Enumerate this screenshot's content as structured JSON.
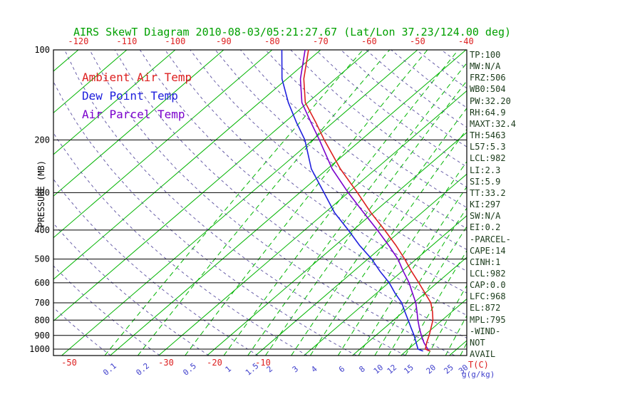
{
  "colors": {
    "grid_green": "#00b400",
    "adiabat_violet": "#5a4fa0",
    "mix_label": "#4040cc",
    "stats_text": "#1a3a1a",
    "title_green": "#00a000",
    "tick_red": "#dd2020",
    "axis_black": "#000000",
    "ambient_red": "#dd2020",
    "dew_blue": "#2020dd",
    "parcel_violet": "#7a00cc"
  },
  "legend": {
    "items": [
      {
        "label": "Ambient Air Temp",
        "color": "#dd2020"
      },
      {
        "label": "Dew Point Temp",
        "color": "#2020dd"
      },
      {
        "label": "Air Parcel Temp",
        "color": "#7a00cc"
      }
    ]
  },
  "stats_panel": {
    "lines": [
      "TP:100",
      "MW:N/A",
      "FRZ:506",
      "WB0:504",
      "PW:32.20",
      "RH:64.9",
      "MAXT:32.4",
      "TH:5463",
      "L57:5.3",
      "LCL:982",
      "LI:2.3",
      "SI:5.9",
      "TT:33.2",
      "KI:297",
      "SW:N/A",
      "EI:0.2",
      "-PARCEL-",
      "CAPE:14",
      "CINH:1",
      "LCL:982",
      "CAP:0.0",
      "LFC:968",
      "EL:872",
      "MPL:795",
      "-WIND-",
      "NOT",
      "AVAIL"
    ]
  },
  "chart_data": {
    "type": "line",
    "variant": "skew-t-log-p",
    "title": "AIRS SkewT Diagram 2010-08-03/05:21:27.67 (Lat/Lon 37.23/124.00 deg)",
    "ylabel": "PRESSURE (MB)",
    "xlabel": "T(C)",
    "x2label": "g(g/kg)",
    "grid": true,
    "legend_position": "top-left-inside",
    "pressure_range": [
      100,
      1050
    ],
    "pressure_ticks": [
      100,
      200,
      300,
      400,
      500,
      600,
      700,
      800,
      900,
      1000
    ],
    "top_temp_ticks": [
      -120,
      -110,
      -100,
      -90,
      -80,
      -70,
      -60,
      -50,
      -40
    ],
    "bottom_temp_ticks": [
      -50,
      -30,
      -20,
      -10
    ],
    "isotherm_range": [
      -160,
      40,
      10
    ],
    "dry_adiabat_theta_range": [
      230,
      450,
      10
    ],
    "mixing_ratio_lines": [
      0.1,
      0.2,
      0.5,
      1,
      1.5,
      2,
      3,
      4,
      6,
      8,
      10,
      12,
      15,
      20,
      25,
      30
    ],
    "series": [
      {
        "name": "Ambient Air Temp",
        "color": "#dd2020",
        "points_pressure_tempC": [
          [
            1015,
            25
          ],
          [
            1000,
            23.5
          ],
          [
            950,
            22.2
          ],
          [
            900,
            21
          ],
          [
            850,
            19.6
          ],
          [
            800,
            18.1
          ],
          [
            750,
            16
          ],
          [
            700,
            13.5
          ],
          [
            650,
            10
          ],
          [
            600,
            6.2
          ],
          [
            550,
            2
          ],
          [
            500,
            -2.4
          ],
          [
            450,
            -7.5
          ],
          [
            400,
            -13.5
          ],
          [
            350,
            -20.5
          ],
          [
            300,
            -28.1
          ],
          [
            250,
            -37.3
          ],
          [
            200,
            -47.6
          ],
          [
            175,
            -53.5
          ],
          [
            150,
            -60.5
          ],
          [
            125,
            -66.5
          ],
          [
            100,
            -72.5
          ]
        ]
      },
      {
        "name": "Dew Point Temp",
        "color": "#2020dd",
        "points_pressure_tempC": [
          [
            1015,
            23.5
          ],
          [
            1000,
            22
          ],
          [
            950,
            20
          ],
          [
            900,
            17.9
          ],
          [
            850,
            15.5
          ],
          [
            800,
            13
          ],
          [
            750,
            10.3
          ],
          [
            700,
            7.5
          ],
          [
            650,
            3.8
          ],
          [
            600,
            0.1
          ],
          [
            550,
            -4.5
          ],
          [
            500,
            -9.2
          ],
          [
            450,
            -15
          ],
          [
            400,
            -21
          ],
          [
            350,
            -28
          ],
          [
            300,
            -35
          ],
          [
            250,
            -43.3
          ],
          [
            200,
            -51.6
          ],
          [
            175,
            -57.5
          ],
          [
            150,
            -64
          ],
          [
            125,
            -71
          ],
          [
            100,
            -78
          ]
        ]
      },
      {
        "name": "Air Parcel Temp",
        "color": "#7a00cc",
        "points_pressure_tempC": [
          [
            1015,
            24.6
          ],
          [
            1000,
            24
          ],
          [
            950,
            21.6
          ],
          [
            900,
            19.4
          ],
          [
            850,
            17.2
          ],
          [
            800,
            15
          ],
          [
            750,
            12.8
          ],
          [
            700,
            10.4
          ],
          [
            650,
            7.4
          ],
          [
            600,
            4.2
          ],
          [
            550,
            0.3
          ],
          [
            500,
            -3.8
          ],
          [
            450,
            -9
          ],
          [
            400,
            -15
          ],
          [
            350,
            -22
          ],
          [
            300,
            -30
          ],
          [
            250,
            -39
          ],
          [
            200,
            -48.6
          ],
          [
            175,
            -54.5
          ],
          [
            150,
            -61.2
          ],
          [
            125,
            -67.2
          ],
          [
            100,
            -73.2
          ]
        ]
      }
    ]
  }
}
